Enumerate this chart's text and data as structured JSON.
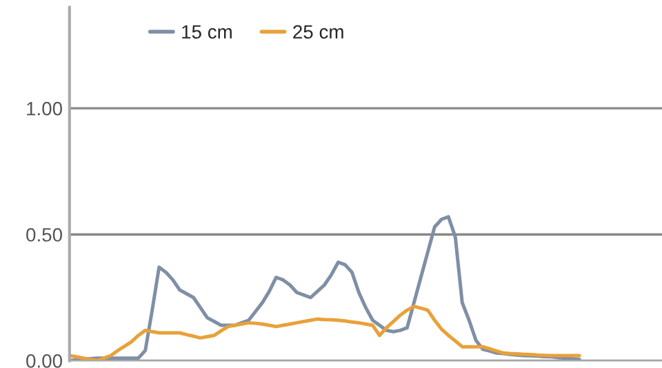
{
  "chart_data": {
    "type": "line",
    "tick_labels": "y",
    "ylim": [
      0,
      1.4
    ],
    "categories": [
      null,
      null,
      null,
      null,
      null,
      null,
      null,
      null,
      null,
      null,
      null,
      null,
      null,
      null,
      null,
      null,
      null,
      null,
      null,
      null,
      null,
      null,
      null,
      null,
      null,
      null,
      null,
      null,
      null,
      null,
      null,
      null,
      null,
      null,
      null,
      null,
      null,
      null,
      null,
      null,
      null,
      null,
      null,
      null,
      null,
      null,
      null,
      null,
      null,
      null,
      null,
      null,
      null,
      null,
      null,
      null,
      null,
      null,
      null,
      null,
      null,
      null,
      null,
      null,
      null,
      null,
      null,
      null,
      null,
      null,
      null,
      null,
      null,
      null,
      null
    ],
    "yticks": [
      {
        "value": 0,
        "label": "0.00"
      },
      {
        "value": 0.5,
        "label": "0.50"
      },
      {
        "value": 1,
        "label": "1.00"
      }
    ],
    "grid": "y",
    "legend": "top",
    "line_style": "solid",
    "marker": "none",
    "series": [
      {
        "name": "15 cm",
        "color": "#7f8fa6",
        "values": [
          0,
          0.003,
          0.005,
          0.008,
          0.01,
          0.01,
          0.01,
          0.01,
          0.01,
          0.01,
          0.01,
          0.04,
          0.2,
          0.37,
          0.35,
          0.32,
          0.28,
          0.265,
          0.25,
          0.21,
          0.17,
          0.155,
          0.14,
          0.14,
          0.14,
          0.15,
          0.16,
          0.195,
          0.23,
          0.275,
          0.33,
          0.32,
          0.3,
          0.27,
          0.26,
          0.25,
          0.275,
          0.3,
          0.34,
          0.39,
          0.38,
          0.35,
          0.27,
          0.21,
          0.16,
          0.14,
          0.12,
          0.115,
          0.12,
          0.13,
          0.23,
          0.33,
          0.43,
          0.53,
          0.56,
          0.57,
          0.49,
          0.23,
          0.16,
          0.08,
          0.045,
          0.038,
          0.03,
          0.028,
          0.025,
          0.022,
          0.02,
          0.019,
          0.018,
          0.016,
          0.015,
          0.012,
          0.01,
          0.008,
          0.005
        ]
      },
      {
        "name": "25 cm",
        "color": "#e8a13a",
        "values": [
          0.02,
          0.015,
          0.01,
          0.005,
          0,
          0.01,
          0.02,
          0.04,
          0.057,
          0.075,
          0.1,
          0.12,
          0.115,
          0.11,
          0.11,
          0.11,
          0.11,
          0.103,
          0.097,
          0.09,
          0.095,
          0.1,
          0.118,
          0.135,
          0.14,
          0.145,
          0.15,
          0.148,
          0.145,
          0.14,
          0.135,
          0.14,
          0.145,
          0.15,
          0.155,
          0.16,
          0.165,
          0.163,
          0.162,
          0.16,
          0.157,
          0.153,
          0.15,
          0.145,
          0.14,
          0.1,
          0.13,
          0.155,
          0.18,
          0.2,
          0.215,
          0.208,
          0.2,
          0.16,
          0.125,
          0.1,
          0.078,
          0.055,
          0.055,
          0.055,
          0.055,
          0.047,
          0.038,
          0.03,
          0.028,
          0.027,
          0.025,
          0.024,
          0.022,
          0.021,
          0.02,
          0.02,
          0.02,
          0.02,
          0.02
        ]
      }
    ]
  }
}
